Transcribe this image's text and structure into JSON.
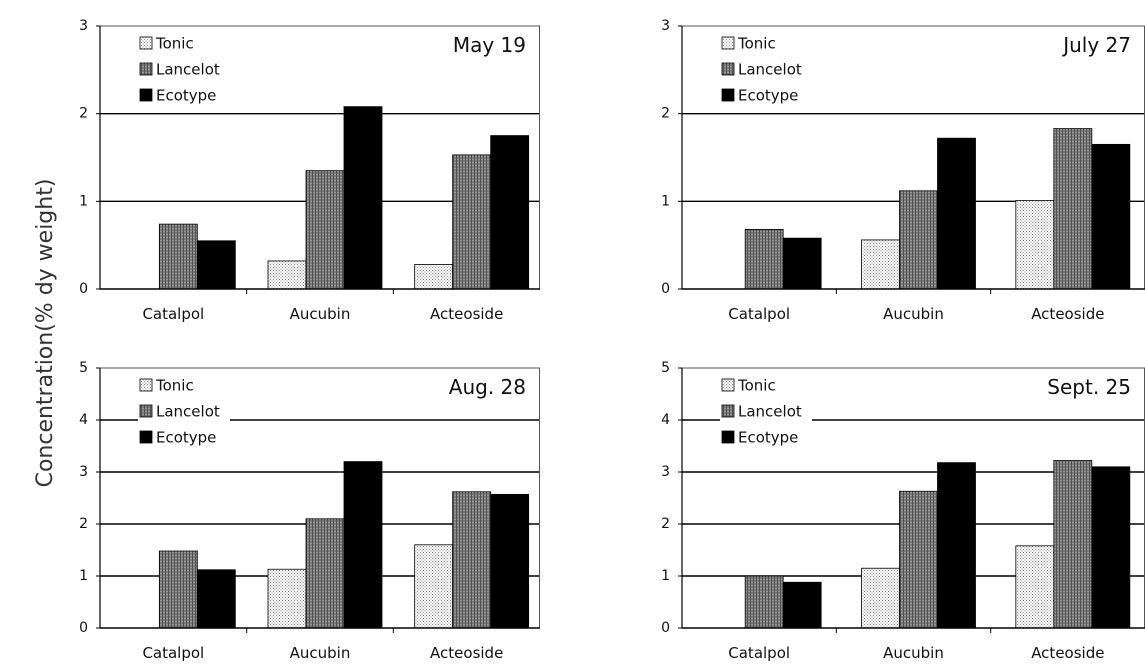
{
  "figure": {
    "ylabel": "Concentration(% dy weight)"
  },
  "chart_data": [
    {
      "type": "bar",
      "title": "May 19",
      "categories": [
        "Catalpol",
        "Aucubin",
        "Acteoside"
      ],
      "series": [
        {
          "name": "Tonic",
          "values": [
            0,
            0.32,
            0.28
          ]
        },
        {
          "name": "Lancelot",
          "values": [
            0.74,
            1.35,
            1.53
          ]
        },
        {
          "name": "Ecotype",
          "values": [
            0.55,
            2.08,
            1.75
          ]
        }
      ],
      "ylim": [
        0,
        3
      ],
      "yticks": [
        "0",
        "1",
        "2",
        "3"
      ],
      "grid": true,
      "legend": "top-left"
    },
    {
      "type": "bar",
      "title": "July 27",
      "categories": [
        "Catalpol",
        "Aucubin",
        "Acteoside"
      ],
      "series": [
        {
          "name": "Tonic",
          "values": [
            0,
            0.56,
            1.01
          ]
        },
        {
          "name": "Lancelot",
          "values": [
            0.68,
            1.12,
            1.83
          ]
        },
        {
          "name": "Ecotype",
          "values": [
            0.58,
            1.72,
            1.65
          ]
        }
      ],
      "ylim": [
        0,
        3
      ],
      "yticks": [
        "0",
        "1",
        "2",
        "3"
      ],
      "grid": true,
      "legend": "top-left"
    },
    {
      "type": "bar",
      "title": "Aug. 28",
      "categories": [
        "Catalpol",
        "Aucubin",
        "Acteoside"
      ],
      "series": [
        {
          "name": "Tonic",
          "values": [
            0,
            1.13,
            1.6
          ]
        },
        {
          "name": "Lancelot",
          "values": [
            1.48,
            2.1,
            2.62
          ]
        },
        {
          "name": "Ecotype",
          "values": [
            1.12,
            3.2,
            2.57
          ]
        }
      ],
      "ylim": [
        0,
        5
      ],
      "yticks": [
        "0",
        "1",
        "2",
        "3",
        "4",
        "5"
      ],
      "grid": true,
      "legend": "top-left"
    },
    {
      "type": "bar",
      "title": "Sept. 25",
      "categories": [
        "Catalpol",
        "Aucubin",
        "Acteoside"
      ],
      "series": [
        {
          "name": "Tonic",
          "values": [
            0,
            1.15,
            1.58
          ]
        },
        {
          "name": "Lancelot",
          "values": [
            1.0,
            2.63,
            3.22
          ]
        },
        {
          "name": "Ecotype",
          "values": [
            0.88,
            3.18,
            3.1
          ]
        }
      ],
      "ylim": [
        0,
        5
      ],
      "yticks": [
        "0",
        "1",
        "2",
        "3",
        "4",
        "5"
      ],
      "grid": true,
      "legend": "top-left"
    }
  ],
  "style": {
    "series_colors": [
      "#cfcfcf",
      "#7a7a7a",
      "#000000"
    ],
    "grid_color": "#000000",
    "frame_color": "#555555"
  }
}
